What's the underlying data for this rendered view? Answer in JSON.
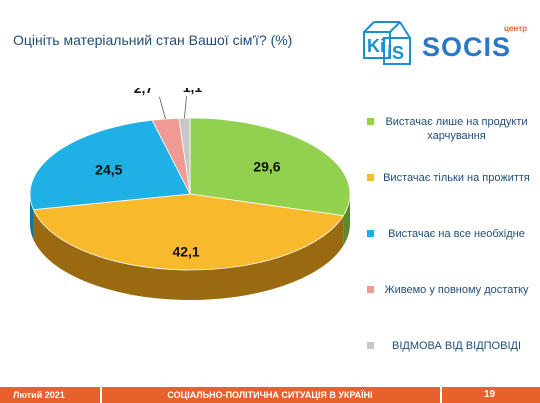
{
  "title": "Оцініть матеріальний стан Вашої сім'ї? (%)",
  "logo": {
    "left": "Ki",
    "right": "iS",
    "brand": "SOCIS",
    "small": "центр"
  },
  "chart_data": {
    "type": "pie",
    "title": "Оцініть матеріальний стан Вашої сім'ї? (%)",
    "slices": [
      {
        "label": "Вистачає лише на продукти харчування",
        "value": 29.6,
        "display": "29,6",
        "color": "#92d050",
        "dark": "#5a8a2a"
      },
      {
        "label": "Вистачає тільки на прожиття",
        "value": 42.1,
        "display": "42,1",
        "color": "#f9b92d",
        "dark": "#9a6a10"
      },
      {
        "label": "Вистачає на все необхідне",
        "value": 24.5,
        "display": "24,5",
        "color": "#1fb0e6",
        "dark": "#10759e"
      },
      {
        "label": "Живемо у повному достатку",
        "value": 2.7,
        "display": "2,7",
        "color": "#f19a94",
        "dark": "#b05a55"
      },
      {
        "label": "ВІДМОВА ВІД ВІДПОВІДІ",
        "value": 1.1,
        "display": "1,1",
        "color": "#c7c7c7",
        "dark": "#8a8a8a"
      }
    ],
    "legend_position": "right"
  },
  "footer": {
    "date": "Лютий 2021",
    "topic": "СОЦІАЛЬНО-ПОЛІТИЧНА СИТУАЦІЯ В УКРАЇНІ",
    "page": "19"
  }
}
